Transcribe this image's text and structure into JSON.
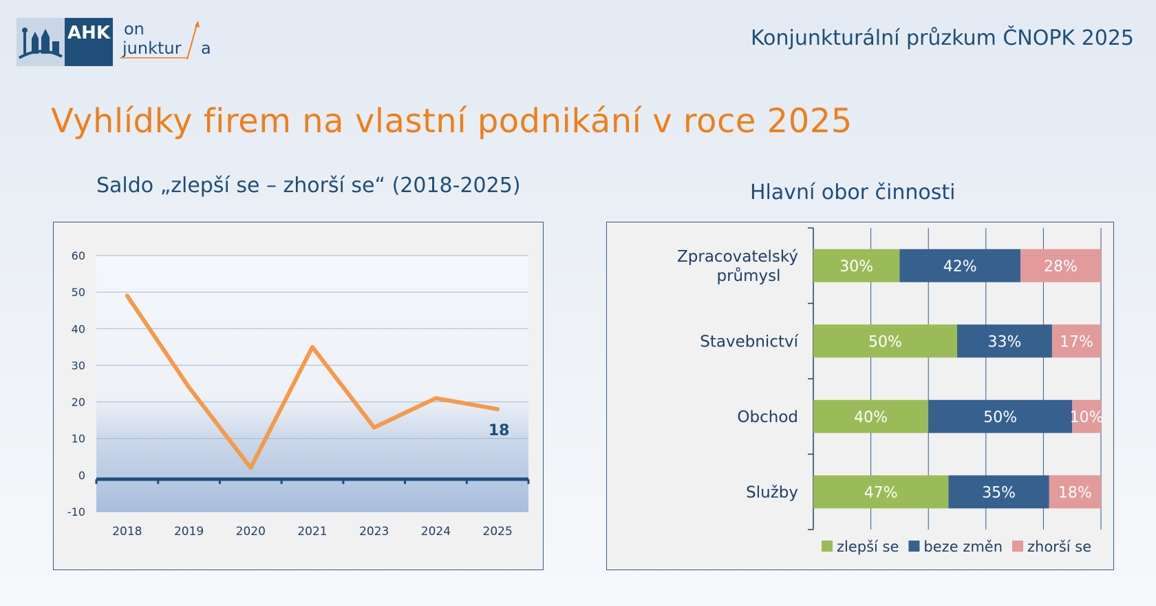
{
  "header": {
    "logo_main": "AHK",
    "logo_on": "on",
    "logo_junktur": "junktur",
    "logo_a": "a",
    "report_title": "Konjunkturální průzkum ČNOPK 2025"
  },
  "page_title": "Vyhlídky firem na vlastní podnikání v roce 2025",
  "colors": {
    "orange": "#ee7f1b",
    "navy": "#1f4e79",
    "green": "#9bbb59",
    "blue": "#36618f",
    "pink": "#e29a9a"
  },
  "chart_data": [
    {
      "type": "line",
      "title": "Saldo „zlepší se – zhorší se“ (2018-2025)",
      "categories": [
        "2018",
        "2019",
        "2020",
        "2021",
        "2023",
        "2024",
        "2025"
      ],
      "series": [
        {
          "values": [
            49,
            24,
            2,
            35,
            13,
            21,
            18
          ]
        }
      ],
      "ylim": [
        -10,
        60
      ],
      "yticks": [
        "60",
        "50",
        "40",
        "30",
        "20",
        "10",
        "0",
        "-10"
      ],
      "annotation": {
        "text": "18",
        "category": "2025"
      },
      "grid": true,
      "series_color": "#f59a4a"
    },
    {
      "type": "bar",
      "orientation": "horizontal",
      "stacked": true,
      "title": "Hlavní obor činnosti",
      "categories": [
        {
          "line1": "Zpracovatelský",
          "line2": "průmysl"
        },
        {
          "line1": "Stavebnictví",
          "line2": ""
        },
        {
          "line1": "Obchod",
          "line2": ""
        },
        {
          "line1": "Služby",
          "line2": ""
        }
      ],
      "series": [
        {
          "name": "zlepší se",
          "values": [
            30,
            50,
            40,
            47
          ],
          "labels": [
            "30%",
            "50%",
            "40%",
            "47%"
          ]
        },
        {
          "name": "beze změn",
          "values": [
            42,
            33,
            50,
            35
          ],
          "labels": [
            "42%",
            "33%",
            "50%",
            "35%"
          ]
        },
        {
          "name": "zhorší se",
          "values": [
            28,
            17,
            10,
            18
          ],
          "labels": [
            "28%",
            "17%",
            "10%",
            "18%"
          ]
        }
      ],
      "xlim": [
        0,
        100
      ],
      "grid": true,
      "legend": "bottom-right"
    }
  ]
}
